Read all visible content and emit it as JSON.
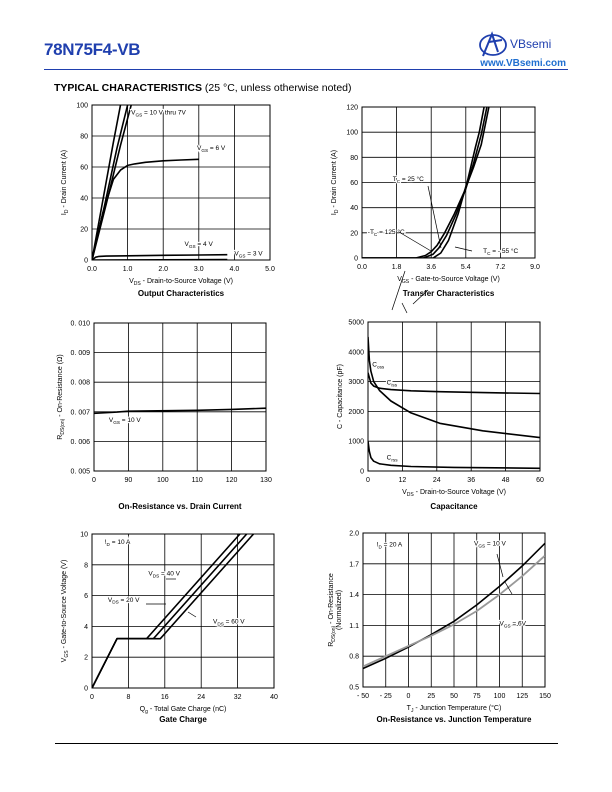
{
  "header": {
    "part_number": "78N75F4-VB",
    "logo_text": "VBsemi",
    "url": "www.VBsemi.com"
  },
  "section": {
    "title": "TYPICAL CHARACTERISTICS",
    "condition": "(25 °C, unless otherwise noted)"
  },
  "colors": {
    "brand": "#1f3fae",
    "url": "#1f6fd0",
    "line": "#000000",
    "gray_curve": "#999999"
  },
  "chart_data": [
    {
      "type": "line",
      "title": "Output Characteristics",
      "xlabel": "V_DS - Drain-to-Source Voltage (V)",
      "ylabel": "I_D - Drain Current (A)",
      "xlim": [
        0,
        5
      ],
      "ylim": [
        0,
        100
      ],
      "xticks": [
        0,
        1,
        2,
        3,
        4,
        5
      ],
      "yticks": [
        0,
        20,
        40,
        60,
        80,
        100
      ],
      "xtick_labels": [
        "0.0",
        "1.0",
        "2.0",
        "3.0",
        "4.0",
        "5.0"
      ],
      "ytick_labels": [
        "0",
        "20",
        "40",
        "60",
        "80",
        "100"
      ],
      "grid": true,
      "series": [
        {
          "name": "V_GS = 10 V thru 7V",
          "x": [
            0,
            0.3,
            0.6,
            0.8
          ],
          "y": [
            0,
            38,
            76,
            100
          ]
        },
        {
          "name": "",
          "x": [
            0,
            0.35,
            0.7,
            1.0
          ],
          "y": [
            0,
            35,
            72,
            100
          ]
        },
        {
          "name": "",
          "x": [
            0,
            0.4,
            0.8,
            1.1
          ],
          "y": [
            0,
            36,
            74,
            100
          ]
        },
        {
          "name": "V_GS = 6 V",
          "x": [
            0,
            0.3,
            0.6,
            0.8,
            1.0,
            1.2,
            1.5,
            2.0,
            2.5,
            3.0
          ],
          "y": [
            0,
            30,
            52,
            58,
            61,
            62,
            63,
            64,
            64.5,
            65
          ]
        },
        {
          "name": "V_GS = 4 V",
          "x": [
            0,
            0.1,
            0.2,
            0.4,
            1.0,
            2.0,
            3.0,
            3.8
          ],
          "y": [
            0,
            1.8,
            2.3,
            2.5,
            2.7,
            3.0,
            3.2,
            3.4
          ]
        },
        {
          "name": "V_GS = 3 V",
          "x": [
            0,
            3.8
          ],
          "y": [
            0,
            0.3
          ]
        }
      ],
      "annotations": [
        {
          "text": "V_GS = 10 V thru 7V",
          "x": 1.1,
          "y": 94
        },
        {
          "text": "V_GS = 6 V",
          "x": 2.95,
          "y": 71
        },
        {
          "text": "V_GS = 4 V",
          "x": 2.6,
          "y": 9
        },
        {
          "text": "V_GS = 3 V",
          "x": 4.0,
          "y": 3
        }
      ]
    },
    {
      "type": "line",
      "title": "Transfer Characteristics",
      "xlabel": "V_GS - Gate-to-Source Voltage (V)",
      "ylabel": "I_D - Drain Current (A)",
      "xlim": [
        0,
        9
      ],
      "ylim": [
        0,
        120
      ],
      "xticks": [
        0,
        1.8,
        3.6,
        5.4,
        7.2,
        9
      ],
      "yticks": [
        0,
        20,
        40,
        60,
        80,
        100,
        120
      ],
      "xtick_labels": [
        "0.0",
        "1.8",
        "3.6",
        "5.4",
        "7.2",
        "9.0"
      ],
      "ytick_labels": [
        "0",
        "20",
        "40",
        "60",
        "80",
        "100",
        "120"
      ],
      "grid": true,
      "series": [
        {
          "name": "T_C = 125 °C",
          "x": [
            0,
            2.8,
            3.3,
            3.6,
            3.9,
            4.3,
            4.8,
            5.3,
            5.8,
            6.2,
            6.6
          ],
          "y": [
            0,
            0,
            2,
            5,
            10,
            20,
            35,
            52,
            72,
            90,
            120
          ]
        },
        {
          "name": "T_C = 25 °C",
          "x": [
            0,
            3.2,
            3.7,
            4.0,
            4.4,
            4.9,
            5.4,
            5.8,
            6.2,
            6.5
          ],
          "y": [
            0,
            0,
            3,
            8,
            18,
            35,
            55,
            75,
            98,
            120
          ]
        },
        {
          "name": "T_C = - 55 °C",
          "x": [
            0,
            3.7,
            4.1,
            4.5,
            5.0,
            5.5,
            5.9,
            6.1,
            6.35
          ],
          "y": [
            0,
            0,
            4,
            14,
            35,
            62,
            88,
            100,
            120
          ]
        }
      ],
      "annotations": [
        {
          "text": "T_C = 25 °C",
          "x": 1.6,
          "y": 61
        },
        {
          "text": "-T_C = 125 °C",
          "x": 0.3,
          "y": 19
        },
        {
          "text": "T_C = - 55 °C",
          "x": 6.3,
          "y": 4
        }
      ]
    },
    {
      "type": "line",
      "title": "On-Resistance vs. Drain Current",
      "xlabel": "",
      "ylabel": "R_DS(on) - On-Resistance (Ω)",
      "xlim": [
        0,
        130
      ],
      "ylim": [
        0.005,
        0.01
      ],
      "xticks": [
        0,
        90,
        100,
        110,
        120,
        130
      ],
      "yticks": [
        0.005,
        0.006,
        0.007,
        0.008,
        0.009,
        0.01
      ],
      "xtick_labels": [
        "0",
        "90",
        "100",
        "110",
        "120",
        "130"
      ],
      "ytick_labels": [
        "0. 005",
        "0. 006",
        "0. 007",
        "0. 008",
        "0. 009",
        "0. 010"
      ],
      "grid": true,
      "series": [
        {
          "name": "V_GS = 10 V",
          "x": [
            0,
            30,
            60,
            90,
            110,
            120,
            130
          ],
          "y": [
            0.00695,
            0.00697,
            0.00699,
            0.00702,
            0.00705,
            0.00708,
            0.00712
          ]
        }
      ],
      "annotations": [
        {
          "text": "V_GS = 10 V",
          "x": 39,
          "y": 0.00665
        }
      ]
    },
    {
      "type": "line",
      "title": "Capacitance",
      "xlabel": "V_DS - Drain-to-Source Voltage (V)",
      "ylabel": "C - Capacitance (pF)",
      "xlim": [
        0,
        60
      ],
      "ylim": [
        0,
        5000
      ],
      "xticks": [
        0,
        12,
        24,
        36,
        48,
        60
      ],
      "yticks": [
        0,
        1000,
        2000,
        3000,
        4000,
        5000
      ],
      "xtick_labels": [
        "0",
        "12",
        "24",
        "36",
        "48",
        "60"
      ],
      "ytick_labels": [
        "0",
        "1000",
        "2000",
        "3000",
        "4000",
        "5000"
      ],
      "grid": true,
      "series": [
        {
          "name": "C_iss",
          "x": [
            0,
            1,
            2,
            4,
            8,
            15,
            25,
            40,
            60
          ],
          "y": [
            3300,
            2950,
            2850,
            2780,
            2730,
            2690,
            2660,
            2630,
            2600
          ]
        },
        {
          "name": "C_oss",
          "x": [
            0,
            0.5,
            1,
            2,
            4,
            8,
            15,
            25,
            40,
            60
          ],
          "y": [
            4500,
            3700,
            3350,
            3000,
            2700,
            2350,
            1950,
            1600,
            1350,
            1120
          ]
        },
        {
          "name": "C_rss",
          "x": [
            0,
            0.5,
            1,
            2,
            4,
            8,
            15,
            30,
            60
          ],
          "y": [
            1000,
            650,
            450,
            330,
            240,
            190,
            150,
            120,
            90
          ]
        }
      ],
      "annotations": [
        {
          "text": "C_oss",
          "x": 1.5,
          "y": 3500
        },
        {
          "text": "C_iss",
          "x": 6.5,
          "y": 2900
        },
        {
          "text": "C_rss",
          "x": 6.5,
          "y": 380
        }
      ]
    },
    {
      "type": "line",
      "title": "Gate Charge",
      "xlabel": "Q_g - Total Gate Charge (nC)",
      "ylabel": "V_GS - Gate-to-Source Voltage (V)",
      "xlim": [
        0,
        40
      ],
      "ylim": [
        0,
        10
      ],
      "xticks": [
        0,
        8,
        16,
        24,
        32,
        40
      ],
      "yticks": [
        0,
        2,
        4,
        6,
        8,
        10
      ],
      "xtick_labels": [
        "0",
        "8",
        "16",
        "24",
        "32",
        "40"
      ],
      "ytick_labels": [
        "0",
        "2",
        "4",
        "6",
        "8",
        "10"
      ],
      "grid": true,
      "series": [
        {
          "name": "V_DS = 20 V",
          "x": [
            0,
            5.5,
            12,
            32.5
          ],
          "y": [
            0,
            3.2,
            3.2,
            10
          ]
        },
        {
          "name": "V_DS = 40 V",
          "x": [
            0,
            5.5,
            13.5,
            34
          ],
          "y": [
            0,
            3.2,
            3.2,
            10
          ]
        },
        {
          "name": "V_DS = 60 V",
          "x": [
            0,
            5.5,
            15,
            35.5
          ],
          "y": [
            0,
            3.2,
            3.2,
            10
          ]
        }
      ],
      "annotations": [
        {
          "text": "I_D = 10 A",
          "x": 2.8,
          "y": 9.35
        },
        {
          "text": "V_DS = 40 V",
          "x": 12.4,
          "y": 7.3
        },
        {
          "text": "V_DS = 20 V",
          "x": 3.5,
          "y": 5.6
        },
        {
          "text": "V_DS = 60 V",
          "x": 26.6,
          "y": 4.2
        }
      ]
    },
    {
      "type": "line",
      "title": "On-Resistance vs. Junction Temperature",
      "xlabel": "T_J - Junction Temperature (°C)",
      "ylabel": "R_DS(on) - On-Resistance (Normalized)",
      "xlim": [
        -50,
        150
      ],
      "ylim": [
        0.5,
        2.0
      ],
      "xticks": [
        -50,
        -25,
        0,
        25,
        50,
        75,
        100,
        125,
        150
      ],
      "yticks": [
        0.5,
        0.8,
        1.1,
        1.4,
        1.7,
        2.0
      ],
      "xtick_labels": [
        "- 50",
        "- 25",
        "0",
        "25",
        "50",
        "75",
        "100",
        "125",
        "150"
      ],
      "ytick_labels": [
        "0.5",
        "0.8",
        "1.1",
        "1.4",
        "1.7",
        "2.0"
      ],
      "grid": true,
      "series": [
        {
          "name": "V_GS = 10 V",
          "x": [
            -50,
            -25,
            0,
            25,
            50,
            75,
            100,
            125,
            150
          ],
          "y": [
            0.68,
            0.78,
            0.89,
            1.01,
            1.14,
            1.3,
            1.48,
            1.68,
            1.9
          ]
        },
        {
          "name": "V_GS = 6V",
          "x": [
            -50,
            -25,
            0,
            25,
            50,
            75,
            100,
            125,
            150
          ],
          "y": [
            0.7,
            0.8,
            0.9,
            1.0,
            1.11,
            1.24,
            1.4,
            1.58,
            1.78
          ]
        }
      ],
      "annotations": [
        {
          "text": "I_D = 20 A",
          "x": -35,
          "y": 1.87
        },
        {
          "text": "V_GS = 10 V",
          "x": 72,
          "y": 1.88
        },
        {
          "text": "V_GS = 6V",
          "x": 100,
          "y": 1.1
        }
      ]
    }
  ]
}
